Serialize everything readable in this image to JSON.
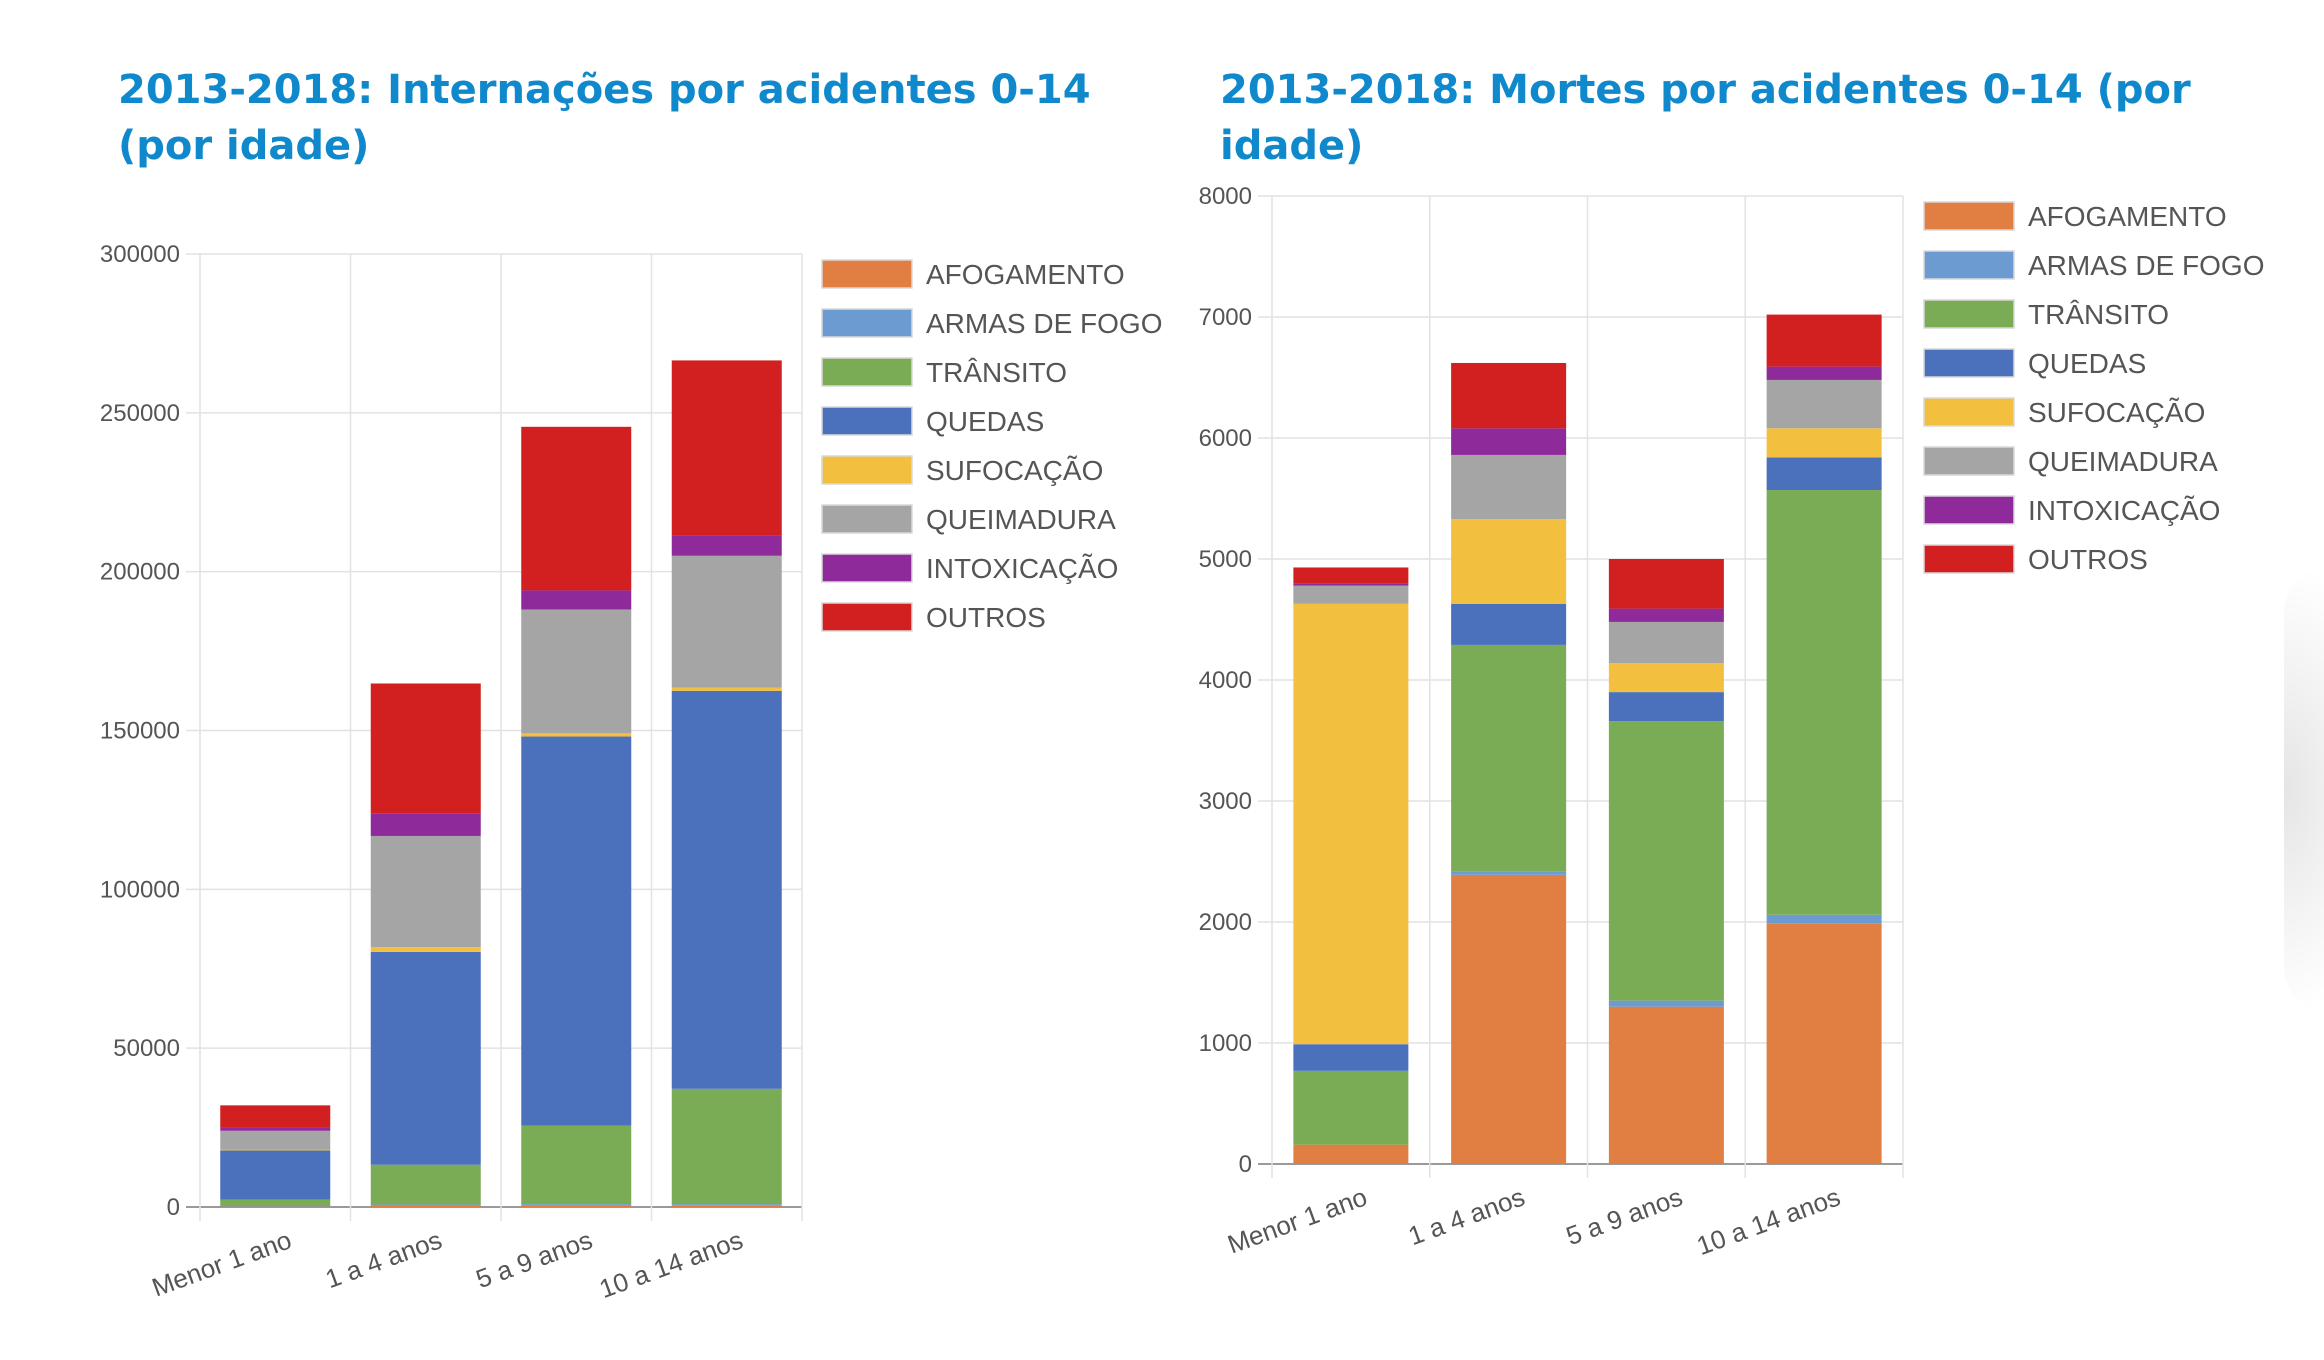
{
  "titles": {
    "left": "2013-2018: Internações por acidentes 0-14 (por idade)",
    "right": "2013-2018: Mortes por acidentes 0-14 (por idade)"
  },
  "series_colors": {
    "AFOGAMENTO": "#e07f41",
    "ARMAS DE FOGO": "#6c9bd2",
    "TRÂNSITO": "#7aab55",
    "QUEDAS": "#4b71bd",
    "SUFOCAÇÃO": "#f3bf3f",
    "QUEIMADURA": "#a5a5a5",
    "INTOXICAÇÃO": "#8e2a9a",
    "OUTROS": "#d21f1f"
  },
  "chart_data": [
    {
      "type": "bar",
      "stacked": true,
      "title": "2013-2018: Internações por acidentes 0-14 (por idade)",
      "categories": [
        "Menor 1 ano",
        "1 a 4 anos",
        "5 a 9 anos",
        "10 a 14 anos"
      ],
      "ylim": [
        0,
        300000
      ],
      "yticks": [
        0,
        50000,
        100000,
        150000,
        200000,
        250000,
        300000
      ],
      "grid": true,
      "legend_position": "right",
      "series": [
        {
          "name": "AFOGAMENTO",
          "values": [
            200,
            600,
            500,
            400
          ]
        },
        {
          "name": "ARMAS DE FOGO",
          "values": [
            100,
            200,
            400,
            500
          ]
        },
        {
          "name": "TRÂNSITO",
          "values": [
            2000,
            12500,
            24700,
            36300
          ]
        },
        {
          "name": "QUEDAS",
          "values": [
            15500,
            67000,
            122500,
            125300
          ]
        },
        {
          "name": "SUFOCAÇÃO",
          "values": [
            200,
            1500,
            1000,
            1000
          ]
        },
        {
          "name": "QUEIMADURA",
          "values": [
            6000,
            35000,
            39000,
            41500
          ]
        },
        {
          "name": "INTOXICAÇÃO",
          "values": [
            1000,
            7000,
            6000,
            6500
          ]
        },
        {
          "name": "OUTROS",
          "values": [
            7000,
            41000,
            51500,
            55000
          ]
        }
      ]
    },
    {
      "type": "bar",
      "stacked": true,
      "title": "2013-2018: Mortes por acidentes 0-14 (por idade)",
      "categories": [
        "Menor 1 ano",
        "1 a 4 anos",
        "5 a 9 anos",
        "10 a 14 anos"
      ],
      "ylim": [
        0,
        8000
      ],
      "yticks": [
        0,
        1000,
        2000,
        3000,
        4000,
        5000,
        6000,
        7000,
        8000
      ],
      "grid": true,
      "legend_position": "right",
      "series": [
        {
          "name": "AFOGAMENTO",
          "values": [
            160,
            2390,
            1300,
            1990
          ]
        },
        {
          "name": "ARMAS DE FOGO",
          "values": [
            0,
            30,
            50,
            70
          ]
        },
        {
          "name": "TRÂNSITO",
          "values": [
            610,
            1870,
            2310,
            3510
          ]
        },
        {
          "name": "QUEDAS",
          "values": [
            220,
            340,
            240,
            270
          ]
        },
        {
          "name": "SUFOCAÇÃO",
          "values": [
            3640,
            700,
            240,
            240
          ]
        },
        {
          "name": "QUEIMADURA",
          "values": [
            150,
            530,
            340,
            400
          ]
        },
        {
          "name": "INTOXICAÇÃO",
          "values": [
            20,
            220,
            110,
            110
          ]
        },
        {
          "name": "OUTROS",
          "values": [
            130,
            540,
            410,
            430
          ]
        }
      ]
    }
  ]
}
